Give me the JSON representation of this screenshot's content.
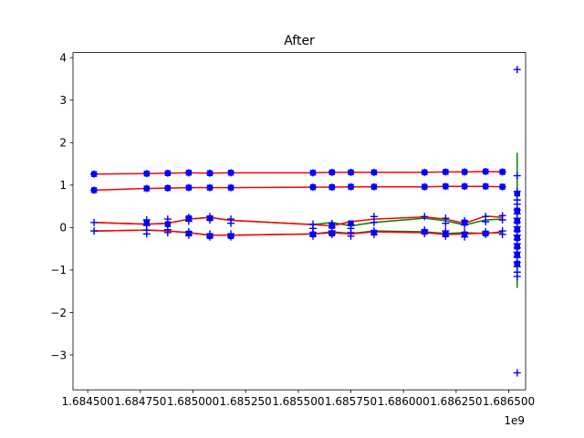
{
  "chart_data": {
    "type": "line",
    "title": "After",
    "xlabel": "",
    "ylabel": "",
    "x_offset_label": "1e9",
    "xlim": [
      1684430000.0,
      1686580000.0
    ],
    "ylim": [
      -3.82,
      4.12
    ],
    "grid": false,
    "x_ticks": [
      {
        "value": 1684500000.0,
        "label": "1.684500"
      },
      {
        "value": 1684750000.0,
        "label": "1.684750"
      },
      {
        "value": 1685000000.0,
        "label": "1.685000"
      },
      {
        "value": 1685250000.0,
        "label": "1.685250"
      },
      {
        "value": 1685500000.0,
        "label": "1.685500"
      },
      {
        "value": 1685750000.0,
        "label": "1.685750"
      },
      {
        "value": 1686000000.0,
        "label": "1.686000"
      },
      {
        "value": 1686250000.0,
        "label": "1.686250"
      },
      {
        "value": 1686500000.0,
        "label": "1.686500"
      }
    ],
    "y_ticks": [
      {
        "value": 4,
        "label": "4"
      },
      {
        "value": 3,
        "label": "3"
      },
      {
        "value": 2,
        "label": "2"
      },
      {
        "value": 1,
        "label": "1"
      },
      {
        "value": 0,
        "label": "0"
      },
      {
        "value": -1,
        "label": "−1"
      },
      {
        "value": -2,
        "label": "−2"
      },
      {
        "value": -3,
        "label": "−3"
      }
    ],
    "x": [
      1684530000.0,
      1684780000.0,
      1684880000.0,
      1684980000.0,
      1685080000.0,
      1685180000.0,
      1685570000.0,
      1685660000.0,
      1685750000.0,
      1685860000.0,
      1686100000.0,
      1686200000.0,
      1686290000.0,
      1686390000.0,
      1686470000.0
    ],
    "series": [
      {
        "color": "#ff0000",
        "values": [
          1.26,
          1.27,
          1.28,
          1.29,
          1.28,
          1.29,
          1.29,
          1.3,
          1.3,
          1.3,
          1.3,
          1.31,
          1.31,
          1.32,
          1.31
        ]
      },
      {
        "color": "#ff0000",
        "values": [
          0.88,
          0.92,
          0.93,
          0.94,
          0.94,
          0.94,
          0.95,
          0.95,
          0.96,
          0.96,
          0.96,
          0.97,
          0.97,
          0.97,
          0.96
        ]
      },
      {
        "color": "#ff0000",
        "values": [
          0.12,
          0.08,
          0.1,
          0.2,
          0.24,
          0.17,
          0.07,
          0.04,
          0.14,
          0.2,
          0.25,
          0.2,
          0.1,
          0.27,
          0.24
        ]
      },
      {
        "color": "#ff0000",
        "values": [
          -0.08,
          -0.06,
          -0.08,
          -0.12,
          -0.18,
          -0.18,
          -0.15,
          -0.12,
          -0.15,
          -0.1,
          -0.12,
          -0.16,
          -0.15,
          -0.13,
          -0.12
        ]
      },
      {
        "color": "#008000",
        "values": [
          0.12,
          0.08,
          0.1,
          0.2,
          0.24,
          0.17,
          0.07,
          0.12,
          0.04,
          0.12,
          0.22,
          0.16,
          0.06,
          0.18,
          0.2
        ]
      },
      {
        "color": "#008000",
        "values": [
          -0.08,
          -0.06,
          -0.08,
          -0.12,
          -0.18,
          -0.18,
          -0.15,
          -0.1,
          -0.14,
          -0.08,
          -0.1,
          -0.14,
          -0.12,
          -0.14,
          -0.1
        ]
      }
    ],
    "scatter_points": [
      {
        "x": 1684530000.0,
        "y": 0.12
      },
      {
        "x": 1684530000.0,
        "y": -0.08
      },
      {
        "x": 1684780000.0,
        "y": 0.18
      },
      {
        "x": 1684780000.0,
        "y": 0.05
      },
      {
        "x": 1684780000.0,
        "y": -0.06
      },
      {
        "x": 1684780000.0,
        "y": -0.15
      },
      {
        "x": 1684880000.0,
        "y": 0.2
      },
      {
        "x": 1684880000.0,
        "y": -0.05
      },
      {
        "x": 1684880000.0,
        "y": -0.12
      },
      {
        "x": 1684980000.0,
        "y": 0.24
      },
      {
        "x": 1684980000.0,
        "y": 0.15
      },
      {
        "x": 1684980000.0,
        "y": -0.1
      },
      {
        "x": 1684980000.0,
        "y": -0.18
      },
      {
        "x": 1685080000.0,
        "y": 0.26
      },
      {
        "x": 1685080000.0,
        "y": 0.18
      },
      {
        "x": 1685080000.0,
        "y": -0.15
      },
      {
        "x": 1685080000.0,
        "y": -0.22
      },
      {
        "x": 1685180000.0,
        "y": 0.2
      },
      {
        "x": 1685180000.0,
        "y": 0.1
      },
      {
        "x": 1685180000.0,
        "y": -0.15
      },
      {
        "x": 1685180000.0,
        "y": -0.22
      },
      {
        "x": 1685570000.0,
        "y": 0.08
      },
      {
        "x": 1685570000.0,
        "y": -0.02
      },
      {
        "x": 1685570000.0,
        "y": -0.12
      },
      {
        "x": 1685570000.0,
        "y": -0.2
      },
      {
        "x": 1685660000.0,
        "y": 0.1
      },
      {
        "x": 1685660000.0,
        "y": 0.0
      },
      {
        "x": 1685660000.0,
        "y": -0.08
      },
      {
        "x": 1685660000.0,
        "y": -0.16
      },
      {
        "x": 1685750000.0,
        "y": 0.06
      },
      {
        "x": 1685750000.0,
        "y": -0.02
      },
      {
        "x": 1685750000.0,
        "y": -0.12
      },
      {
        "x": 1685750000.0,
        "y": -0.2
      },
      {
        "x": 1685860000.0,
        "y": 0.26
      },
      {
        "x": 1685860000.0,
        "y": 0.12
      },
      {
        "x": 1685860000.0,
        "y": -0.08
      },
      {
        "x": 1685860000.0,
        "y": -0.16
      },
      {
        "x": 1686100000.0,
        "y": 0.26
      },
      {
        "x": 1686100000.0,
        "y": -0.06
      },
      {
        "x": 1686100000.0,
        "y": -0.14
      },
      {
        "x": 1686200000.0,
        "y": 0.22
      },
      {
        "x": 1686200000.0,
        "y": 0.1
      },
      {
        "x": 1686200000.0,
        "y": -0.08
      },
      {
        "x": 1686200000.0,
        "y": -0.2
      },
      {
        "x": 1686290000.0,
        "y": 0.16
      },
      {
        "x": 1686290000.0,
        "y": 0.06
      },
      {
        "x": 1686290000.0,
        "y": -0.12
      },
      {
        "x": 1686290000.0,
        "y": -0.22
      },
      {
        "x": 1686390000.0,
        "y": 0.26
      },
      {
        "x": 1686390000.0,
        "y": 0.14
      },
      {
        "x": 1686390000.0,
        "y": -0.1
      },
      {
        "x": 1686390000.0,
        "y": -0.16
      },
      {
        "x": 1686470000.0,
        "y": 0.28
      },
      {
        "x": 1686470000.0,
        "y": 0.18
      },
      {
        "x": 1686470000.0,
        "y": -0.08
      },
      {
        "x": 1686470000.0,
        "y": -0.16
      }
    ],
    "square_points": [
      {
        "x": 1684780000.0,
        "y": 0.12
      },
      {
        "x": 1684880000.0,
        "y": 0.08
      },
      {
        "x": 1684980000.0,
        "y": 0.22
      },
      {
        "x": 1685080000.0,
        "y": 0.22
      },
      {
        "x": 1685660000.0,
        "y": 0.04
      },
      {
        "x": 1685750000.0,
        "y": 0.1
      },
      {
        "x": 1686290000.0,
        "y": 0.12
      },
      {
        "x": 1684980000.0,
        "y": -0.14
      },
      {
        "x": 1685080000.0,
        "y": -0.2
      },
      {
        "x": 1685180000.0,
        "y": -0.2
      },
      {
        "x": 1685570000.0,
        "y": -0.16
      },
      {
        "x": 1685660000.0,
        "y": -0.14
      },
      {
        "x": 1685860000.0,
        "y": -0.12
      },
      {
        "x": 1686100000.0,
        "y": -0.1
      },
      {
        "x": 1686200000.0,
        "y": -0.16
      },
      {
        "x": 1686290000.0,
        "y": -0.16
      },
      {
        "x": 1686390000.0,
        "y": -0.14
      }
    ],
    "outlier_column": {
      "x": 1686540000.0,
      "green_range": [
        -1.42,
        1.76
      ],
      "plus_points": [
        3.72,
        1.22,
        0.85,
        0.65,
        0.55,
        0.42,
        0.32,
        0.22,
        0.12,
        0.02,
        -0.08,
        -0.18,
        -0.28,
        -0.38,
        -0.48,
        -0.58,
        -0.7,
        -0.82,
        -0.92,
        -1.05,
        -1.15,
        -3.42
      ],
      "square_points": [
        0.8,
        0.4,
        0.15,
        -0.05,
        -0.25,
        -0.45,
        -0.65,
        -0.85
      ]
    }
  }
}
